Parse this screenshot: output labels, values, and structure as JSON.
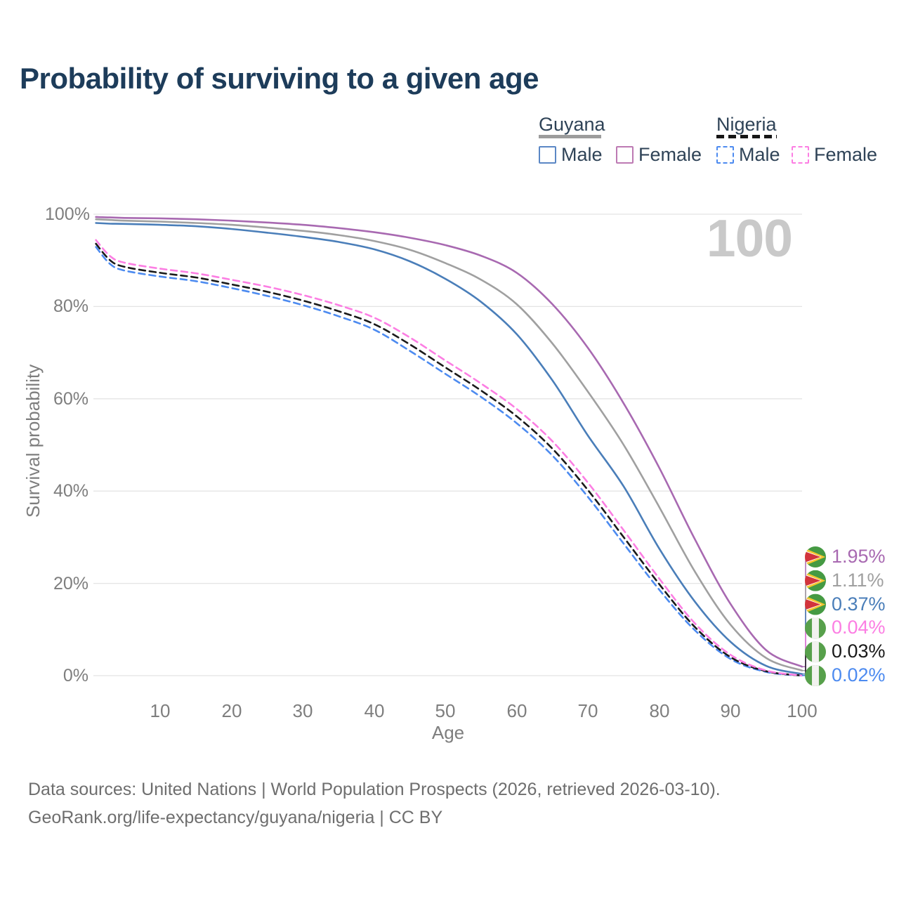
{
  "title": "Probability of surviving to a given age",
  "watermark_age": "100",
  "legend": {
    "groups": [
      {
        "name": "Guyana",
        "line_style": "solid",
        "line_color": "#9c9c9c",
        "items": [
          {
            "label": "Male",
            "color": "#5b87c5"
          },
          {
            "label": "Female",
            "color": "#bd7ab3"
          }
        ]
      },
      {
        "name": "Nigeria",
        "line_style": "dashed",
        "line_color": "#161616",
        "items": [
          {
            "label": "Male",
            "color": "#4d8bf0"
          },
          {
            "label": "Female",
            "color": "#fc7ee3"
          }
        ]
      }
    ]
  },
  "chart_data": {
    "type": "line",
    "xlabel": "Age",
    "ylabel": "Survival probability",
    "xlim": [
      0,
      100
    ],
    "ylim": [
      0,
      100
    ],
    "grid": "horizontal",
    "legend_position": "top-right",
    "x_ticks": [
      10,
      20,
      30,
      40,
      50,
      60,
      70,
      80,
      90,
      100
    ],
    "y_ticks": [
      {
        "label": "100%",
        "value": 100
      },
      {
        "label": "80%",
        "value": 80
      },
      {
        "label": "60%",
        "value": 60
      },
      {
        "label": "40%",
        "value": 40
      },
      {
        "label": "20%",
        "value": 20
      },
      {
        "label": "0%",
        "value": 0
      }
    ],
    "ages": [
      1,
      3,
      5,
      10,
      15,
      20,
      25,
      30,
      35,
      40,
      45,
      50,
      55,
      60,
      65,
      70,
      75,
      80,
      85,
      90,
      95,
      100
    ],
    "series": [
      {
        "name": "Guyana Female",
        "country": "Guyana",
        "sex": "Female",
        "color": "#a869b1",
        "dashed": false,
        "flag": "guyana-flag-icon",
        "end_label": "1.95%",
        "values": [
          99.4,
          99.3,
          99.2,
          99.1,
          98.9,
          98.6,
          98.2,
          97.7,
          97.0,
          96.1,
          94.9,
          93.3,
          91.0,
          87.3,
          80.5,
          71.0,
          59.0,
          45.0,
          29.5,
          15.5,
          5.5,
          1.95
        ]
      },
      {
        "name": "Guyana",
        "country": "Guyana",
        "sex": "All",
        "color": "#a0a0a0",
        "dashed": false,
        "flag": "guyana-flag-icon",
        "end_label": "1.11%",
        "values": [
          98.9,
          98.75,
          98.6,
          98.4,
          98.1,
          97.7,
          97.1,
          96.4,
          95.5,
          94.2,
          92.3,
          89.4,
          85.8,
          80.5,
          72.0,
          61.5,
          50.0,
          36.5,
          22.5,
          11.0,
          3.8,
          1.11
        ]
      },
      {
        "name": "Guyana Male",
        "country": "Guyana",
        "sex": "Male",
        "color": "#4a7eb9",
        "dashed": false,
        "flag": "guyana-flag-icon",
        "end_label": "0.37%",
        "values": [
          98.1,
          97.95,
          97.9,
          97.7,
          97.4,
          96.8,
          96.0,
          95.1,
          94.0,
          92.4,
          89.8,
          86.0,
          81.0,
          74.0,
          64.0,
          52.0,
          41.0,
          27.5,
          16.0,
          7.3,
          2.1,
          0.37
        ]
      },
      {
        "name": "Nigeria Female",
        "country": "Nigeria",
        "sex": "Female",
        "color": "#fc7ee3",
        "dashed": true,
        "flag": "nigeria-flag-icon",
        "end_label": "0.04%",
        "values": [
          94.4,
          90.9,
          89.5,
          88.2,
          87.2,
          85.8,
          84.3,
          82.5,
          80.3,
          77.6,
          73.3,
          68.3,
          63.3,
          57.8,
          50.8,
          41.8,
          31.5,
          21.0,
          11.3,
          4.5,
          1.1,
          0.04
        ]
      },
      {
        "name": "Nigeria",
        "country": "Nigeria",
        "sex": "All",
        "color": "#1a1a1a",
        "dashed": true,
        "flag": "nigeria-flag-icon",
        "end_label": "0.03%",
        "values": [
          93.6,
          90.0,
          88.6,
          87.3,
          86.3,
          84.8,
          83.2,
          81.3,
          79.0,
          76.2,
          71.8,
          66.8,
          61.8,
          56.2,
          49.2,
          40.2,
          30.0,
          19.8,
          10.5,
          4.0,
          0.95,
          0.03
        ]
      },
      {
        "name": "Nigeria Male",
        "country": "Nigeria",
        "sex": "Male",
        "color": "#4d8bf0",
        "dashed": true,
        "flag": "nigeria-flag-icon",
        "end_label": "0.02%",
        "values": [
          92.9,
          89.2,
          87.8,
          86.5,
          85.5,
          84.0,
          82.3,
          80.3,
          77.9,
          75.0,
          70.4,
          65.4,
          60.4,
          54.7,
          47.7,
          38.7,
          28.6,
          18.6,
          9.8,
          3.6,
          0.8,
          0.02
        ]
      }
    ]
  },
  "flag_colors": {
    "guyana": {
      "green": "#459a43",
      "yellow": "#f6c630",
      "white": "#ffffff",
      "red": "#d2343c"
    },
    "nigeria": {
      "green": "#57a04b",
      "white": "#f2f2ef"
    }
  },
  "footer": {
    "line1": "Data sources: United Nations | World Population Prospects (2026, retrieved 2026-03-10).",
    "line2": "GeoRank.org/life-expectancy/guyana/nigeria | CC BY"
  }
}
